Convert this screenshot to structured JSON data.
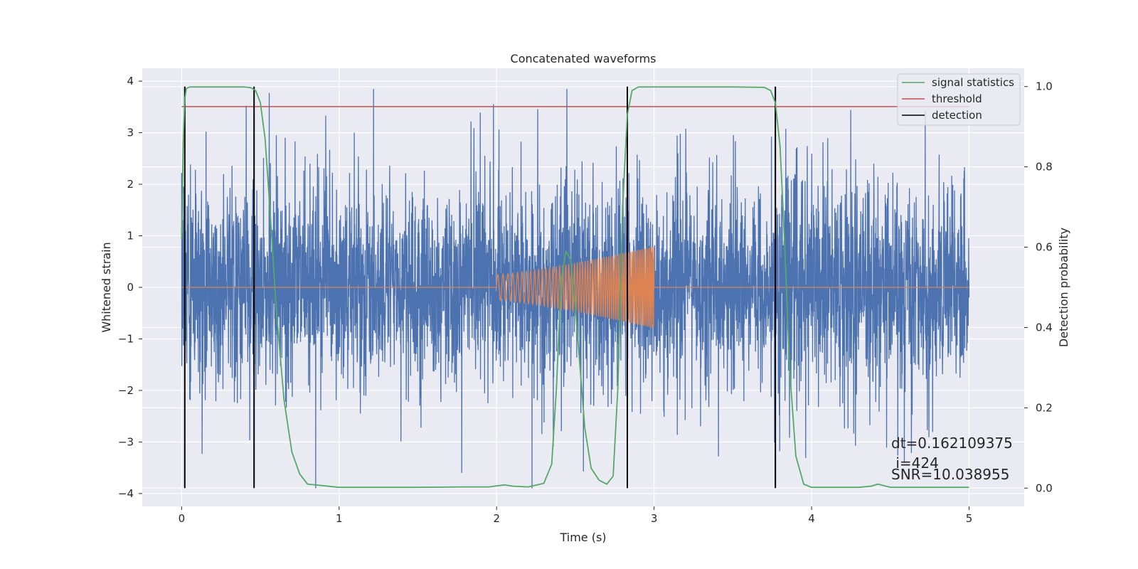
{
  "chart_data": {
    "type": "line",
    "title": "Concatenated waveforms",
    "xlabel": "Time (s)",
    "ylabel": "Whitened strain",
    "y2label": "Detection probability",
    "xlim": [
      -0.25,
      5.35
    ],
    "ylim": [
      -4.25,
      4.25
    ],
    "y2lim": [
      -0.0455,
      1.0455
    ],
    "x_ticks": [
      0,
      1,
      2,
      3,
      4,
      5
    ],
    "y_ticks": [
      -4,
      -3,
      -2,
      -1,
      0,
      1,
      2,
      3,
      4
    ],
    "y2_ticks": [
      0.0,
      0.2,
      0.4,
      0.6,
      0.8,
      1.0
    ],
    "x_tick_labels": [
      "0",
      "1",
      "2",
      "3",
      "4",
      "5"
    ],
    "y_tick_labels": [
      "−4",
      "−3",
      "−2",
      "−1",
      "0",
      "1",
      "2",
      "3",
      "4"
    ],
    "y2_tick_labels": [
      "0.0",
      "0.2",
      "0.4",
      "0.6",
      "0.8",
      "1.0"
    ],
    "grid": true,
    "legend_position": "top-right",
    "legend": [
      {
        "label": "signal statistics",
        "color": "#55a868"
      },
      {
        "label": "threshold",
        "color": "#c44e52"
      },
      {
        "label": "detection",
        "color": "#000000"
      }
    ],
    "noise_series": {
      "color": "#4c72b0",
      "x_range": [
        0,
        5
      ],
      "band_amplitude": 0.8,
      "min": -3.9,
      "max": 3.85
    },
    "chirp_series": {
      "color": "#dd8452",
      "x_range": [
        0,
        5
      ],
      "chirp_start": 2.0,
      "chirp_end": 3.0,
      "amplitude_start": 0.25,
      "amplitude_end": 0.8
    },
    "signal_statistics": {
      "axis": "right",
      "color": "#55a868",
      "x": [
        0.0,
        0.01,
        0.02,
        0.03,
        0.05,
        0.08,
        0.15,
        0.3,
        0.4,
        0.44,
        0.47,
        0.5,
        0.53,
        0.56,
        0.6,
        0.65,
        0.7,
        0.75,
        0.8,
        1.0,
        1.5,
        1.8,
        1.95,
        2.05,
        2.1,
        2.2,
        2.3,
        2.35,
        2.38,
        2.41,
        2.44,
        2.47,
        2.5,
        2.53,
        2.56,
        2.6,
        2.65,
        2.7,
        2.74,
        2.77,
        2.8,
        2.83,
        2.86,
        2.9,
        3.0,
        3.5,
        3.7,
        3.74,
        3.77,
        3.8,
        3.83,
        3.86,
        3.9,
        3.95,
        4.0,
        4.3,
        4.38,
        4.42,
        4.5,
        5.0
      ],
      "y": [
        0.62,
        0.86,
        0.97,
        0.995,
        0.999,
        0.999,
        0.999,
        0.999,
        0.999,
        0.997,
        0.99,
        0.96,
        0.87,
        0.7,
        0.45,
        0.22,
        0.09,
        0.035,
        0.01,
        0.002,
        0.002,
        0.003,
        0.003,
        0.008,
        0.005,
        0.003,
        0.012,
        0.06,
        0.25,
        0.52,
        0.59,
        0.57,
        0.45,
        0.3,
        0.15,
        0.05,
        0.02,
        0.01,
        0.03,
        0.25,
        0.7,
        0.93,
        0.99,
        0.999,
        0.999,
        0.999,
        0.998,
        0.99,
        0.96,
        0.85,
        0.6,
        0.3,
        0.08,
        0.01,
        0.002,
        0.002,
        0.005,
        0.01,
        0.002,
        0.002
      ]
    },
    "threshold": {
      "axis": "right",
      "color": "#c44e52",
      "value": 0.95,
      "x_range": [
        0,
        5
      ]
    },
    "detections": {
      "axis": "right",
      "color": "#000000",
      "x": [
        0.02,
        0.46,
        2.83,
        3.77
      ],
      "y_range": [
        0.0,
        1.0
      ]
    },
    "annotations": [
      "dt=0.162109375",
      " i=424",
      "SNR=10.038955"
    ]
  }
}
